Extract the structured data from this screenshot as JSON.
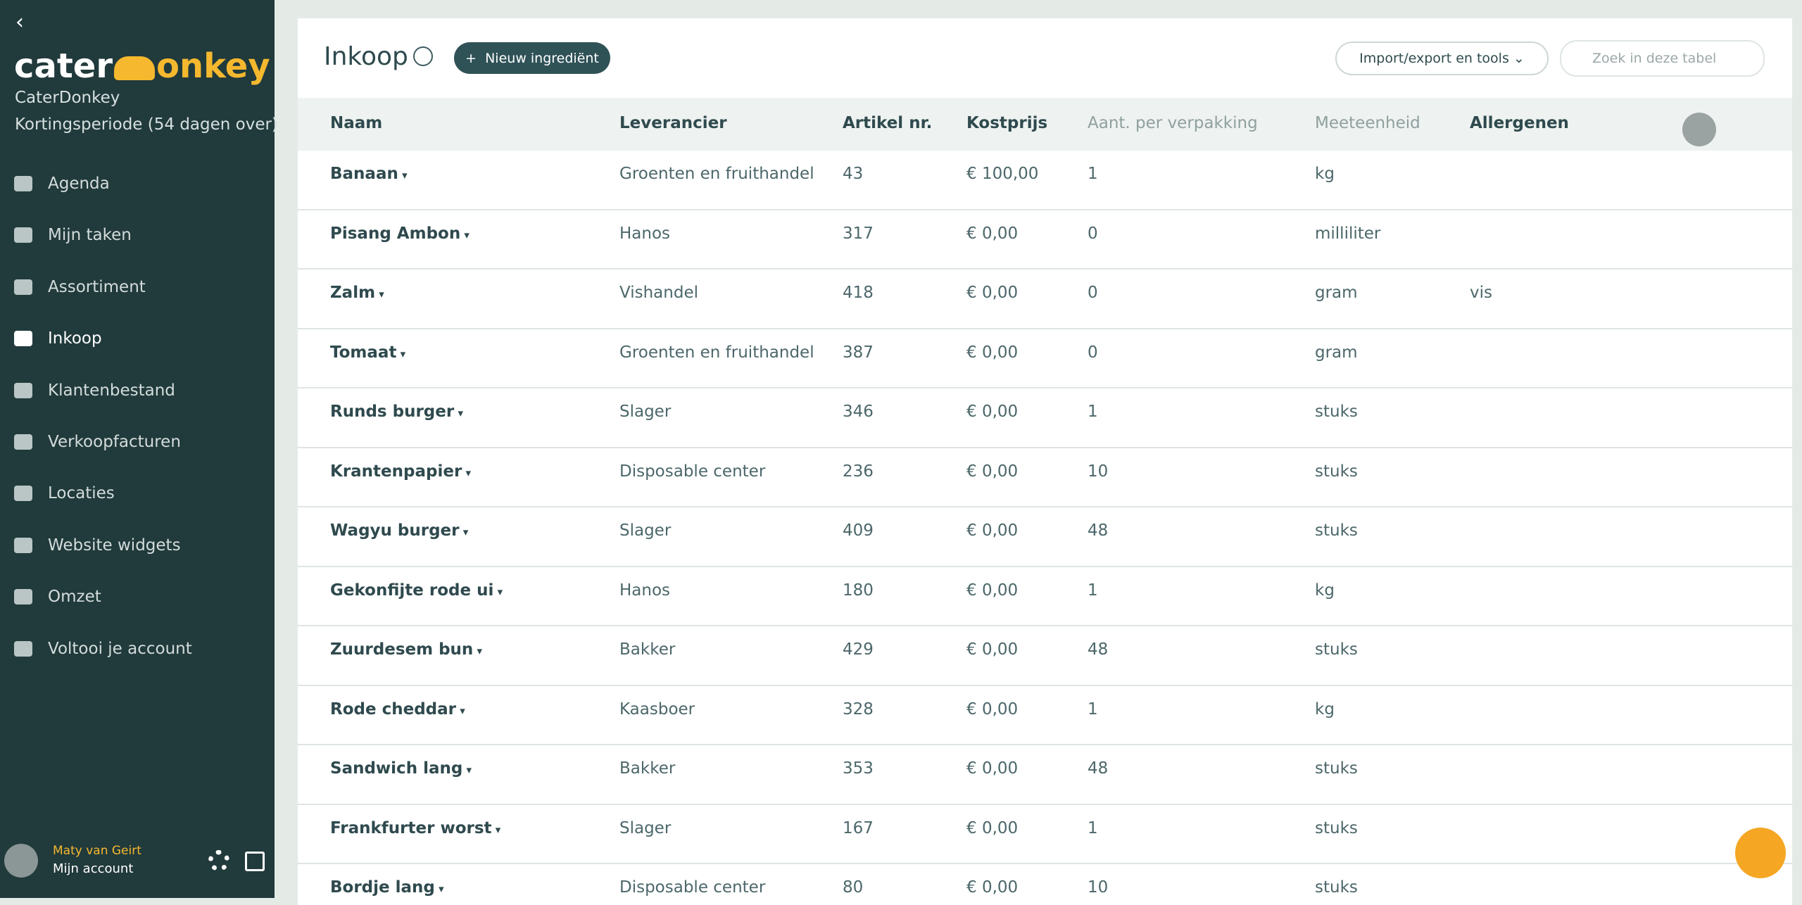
{
  "sidebar": {
    "logo": {
      "left": "cater",
      "right": "onkey"
    },
    "company": "CaterDonkey",
    "period": "Kortingsperiode (54 dagen over)",
    "nav": [
      "Agenda",
      "Mijn taken",
      "Assortiment",
      "Inkoop",
      "Klantenbestand",
      "Verkoopfacturen",
      "Locaties",
      "Website widgets",
      "Omzet",
      "Voltooi je account"
    ],
    "user": {
      "name": "Maty van Geirt",
      "account": "Mijn account"
    }
  },
  "header": {
    "title": "Inkoop",
    "new_button": "Nieuw ingrediënt",
    "import_button": "Import/export en tools",
    "search_placeholder": "Zoek in deze tabel"
  },
  "table": {
    "columns": [
      "Naam",
      "Leverancier",
      "Artikel nr.",
      "Kostprijs",
      "Aant. per verpakking",
      "Meeteenheid",
      "Allergenen"
    ],
    "rows": [
      {
        "naam": "Banaan",
        "leverancier": "Groenten en fruithandel",
        "artikel": 43,
        "kostprijs": "€ 100,00",
        "aantal": 1,
        "eenheid": "kg"
      },
      {
        "naam": "Pisang Ambon",
        "leverancier": "Hanos",
        "artikel": 317,
        "kostprijs": "€ 0,00",
        "aantal": 0,
        "eenheid": "milliliter"
      },
      {
        "naam": "Zalm",
        "leverancier": "Vishandel",
        "artikel": 418,
        "kostprijs": "€ 0,00",
        "aantal": 0,
        "eenheid": "gram",
        "allergenen": "vis"
      },
      {
        "naam": "Tomaat",
        "leverancier": "Groenten en fruithandel",
        "artikel": 387,
        "kostprijs": "€ 0,00",
        "aantal": 0,
        "eenheid": "gram"
      },
      {
        "naam": "Runds burger",
        "leverancier": "Slager",
        "artikel": 346,
        "kostprijs": "€ 0,00",
        "aantal": 1,
        "eenheid": "stuks"
      },
      {
        "naam": "Krantenpapier",
        "leverancier": "Disposable center",
        "artikel": 236,
        "kostprijs": "€ 0,00",
        "aantal": 10,
        "eenheid": "stuks"
      },
      {
        "naam": "Wagyu burger",
        "leverancier": "Slager",
        "artikel": 409,
        "kostprijs": "€ 0,00",
        "aantal": 48,
        "eenheid": "stuks"
      },
      {
        "naam": "Gekonfijte rode ui",
        "leverancier": "Hanos",
        "artikel": 180,
        "kostprijs": "€ 0,00",
        "aantal": 1,
        "eenheid": "kg"
      },
      {
        "naam": "Zuurdesem bun",
        "leverancier": "Bakker",
        "artikel": 429,
        "kostprijs": "€ 0,00",
        "aantal": 48,
        "eenheid": "stuks"
      },
      {
        "naam": "Rode cheddar",
        "leverancier": "Kaasboer",
        "artikel": 328,
        "kostprijs": "€ 0,00",
        "aantal": 1,
        "eenheid": "kg"
      },
      {
        "naam": "Sandwich lang",
        "leverancier": "Bakker",
        "artikel": 353,
        "kostprijs": "€ 0,00",
        "aantal": 48,
        "eenheid": "stuks"
      },
      {
        "naam": "Frankfurter worst",
        "leverancier": "Slager",
        "artikel": 167,
        "kostprijs": "€ 0,00",
        "aantal": 1,
        "eenheid": "stuks"
      },
      {
        "naam": "Bordje lang",
        "leverancier": "Disposable center",
        "artikel": 80,
        "kostprijs": "€ 0,00",
        "aantal": 10,
        "eenheid": "stuks"
      }
    ]
  }
}
